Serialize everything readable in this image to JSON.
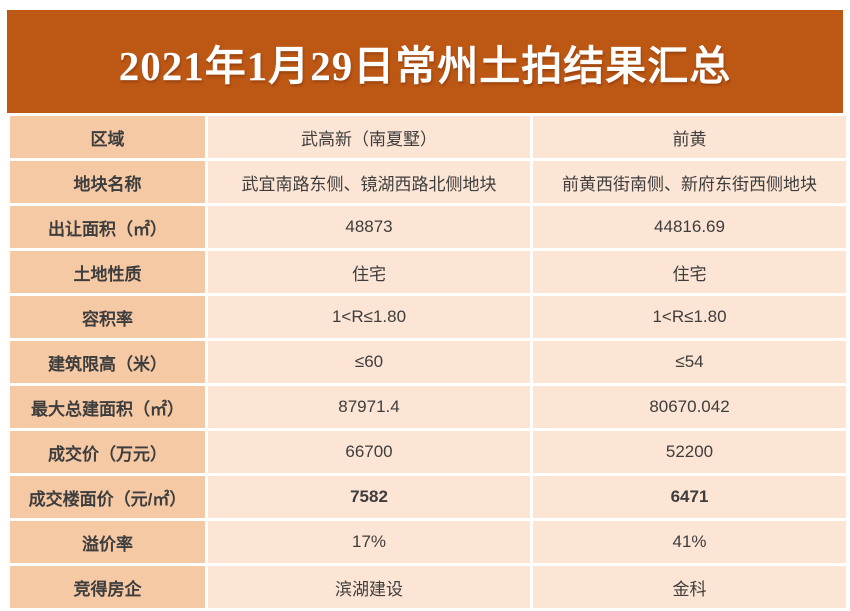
{
  "title": "2021年1月29日常州土拍结果汇总",
  "colors": {
    "banner_bg": "#bd5714",
    "banner_text": "#ffffff",
    "label_cell_bg": "#f6c9a5",
    "data_cell_bg": "#fce5d4",
    "body_text": "#3d3d3d",
    "highlight_text": "#c45e1c"
  },
  "chart_data": {
    "type": "table",
    "title": "2021年1月29日常州土拍结果汇总",
    "rows": [
      {
        "label": "区域",
        "v1": "武高新（南夏墅）",
        "v2": "前黄"
      },
      {
        "label": "地块名称",
        "v1": "武宜南路东侧、镜湖西路北侧地块",
        "v2": "前黄西街南侧、新府东街西侧地块"
      },
      {
        "label": "出让面积（㎡）",
        "v1": "48873",
        "v2": "44816.69"
      },
      {
        "label": "土地性质",
        "v1": "住宅",
        "v2": "住宅"
      },
      {
        "label": "容积率",
        "v1": "1<R≤1.80",
        "v2": "1<R≤1.80"
      },
      {
        "label": "建筑限高（米）",
        "v1": "≤60",
        "v2": "≤54"
      },
      {
        "label": "最大总建面积（㎡）",
        "v1": "87971.4",
        "v2": "80670.042"
      },
      {
        "label": "成交价（万元）",
        "v1": "66700",
        "v2": "52200"
      },
      {
        "label": "成交楼面价（元/㎡）",
        "v1": "7582",
        "v2": "6471"
      },
      {
        "label": "溢价率",
        "v1": "17%",
        "v2": "41%"
      },
      {
        "label": "竞得房企",
        "v1": "滨湖建设",
        "v2": "金科"
      }
    ]
  }
}
